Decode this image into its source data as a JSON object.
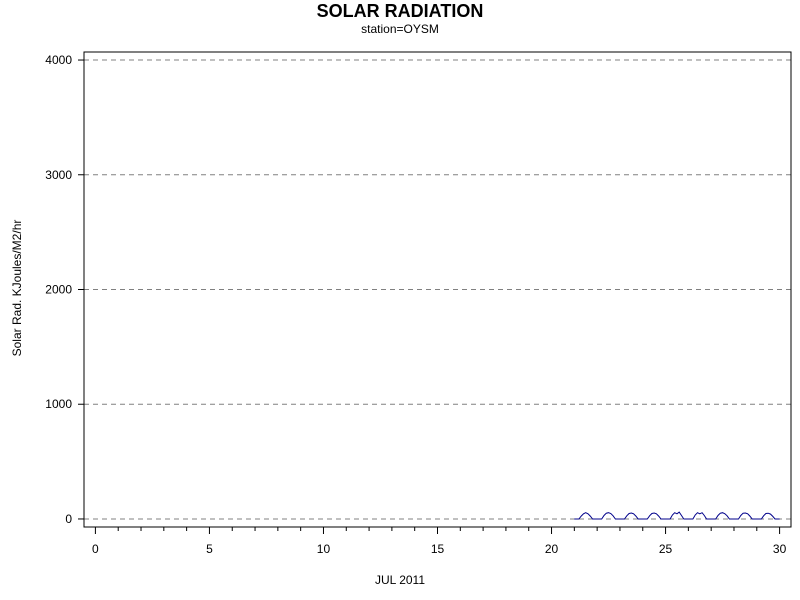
{
  "chart_data": {
    "type": "line",
    "title": "SOLAR RADIATION",
    "subtitle": "station=OYSM",
    "ylabel": "Solar Rad. KJoules/M2/hr",
    "xlabel": "JUL 2011",
    "xlim": [
      -0.5,
      30.5
    ],
    "ylim": [
      -70,
      4070
    ],
    "x_ticks": [
      0,
      5,
      10,
      15,
      20,
      25,
      30
    ],
    "x_minor_step": 1,
    "y_ticks": [
      0,
      1000,
      2000,
      3000,
      4000
    ],
    "grid": "horizontal-dashed",
    "colors": {
      "series": "#00008b",
      "grid": "#808080",
      "axis": "#000000"
    },
    "series": [
      {
        "x": [
          21.0,
          21.2,
          21.3,
          21.4,
          21.5,
          21.6,
          21.7,
          21.8,
          22.0,
          22.2,
          22.3,
          22.4,
          22.5,
          22.6,
          22.7,
          22.8,
          23.0,
          23.2,
          23.3,
          23.4,
          23.5,
          23.6,
          23.7,
          23.8,
          24.0,
          24.2,
          24.3,
          24.4,
          24.5,
          24.6,
          24.7,
          24.8,
          25.0,
          25.2,
          25.3,
          25.4,
          25.5,
          25.6,
          25.7,
          25.8,
          26.0,
          26.2,
          26.3,
          26.4,
          26.5,
          26.6,
          26.7,
          26.8,
          27.0,
          27.2,
          27.3,
          27.4,
          27.5,
          27.6,
          27.7,
          27.8,
          28.0,
          28.2,
          28.3,
          28.4,
          28.5,
          28.6,
          28.7,
          28.8,
          29.0,
          29.2,
          29.3,
          29.4,
          29.5,
          29.6,
          29.7,
          29.8,
          30.0
        ],
        "y": [
          0,
          0,
          25,
          45,
          55,
          45,
          25,
          0,
          0,
          0,
          30,
          50,
          55,
          48,
          28,
          0,
          0,
          0,
          28,
          48,
          52,
          45,
          25,
          0,
          0,
          0,
          28,
          48,
          52,
          45,
          25,
          0,
          0,
          0,
          35,
          55,
          45,
          60,
          30,
          0,
          0,
          0,
          35,
          55,
          45,
          55,
          30,
          0,
          0,
          0,
          30,
          50,
          55,
          45,
          28,
          0,
          0,
          0,
          30,
          50,
          52,
          45,
          25,
          0,
          0,
          0,
          28,
          48,
          50,
          42,
          22,
          0,
          0
        ]
      }
    ]
  }
}
